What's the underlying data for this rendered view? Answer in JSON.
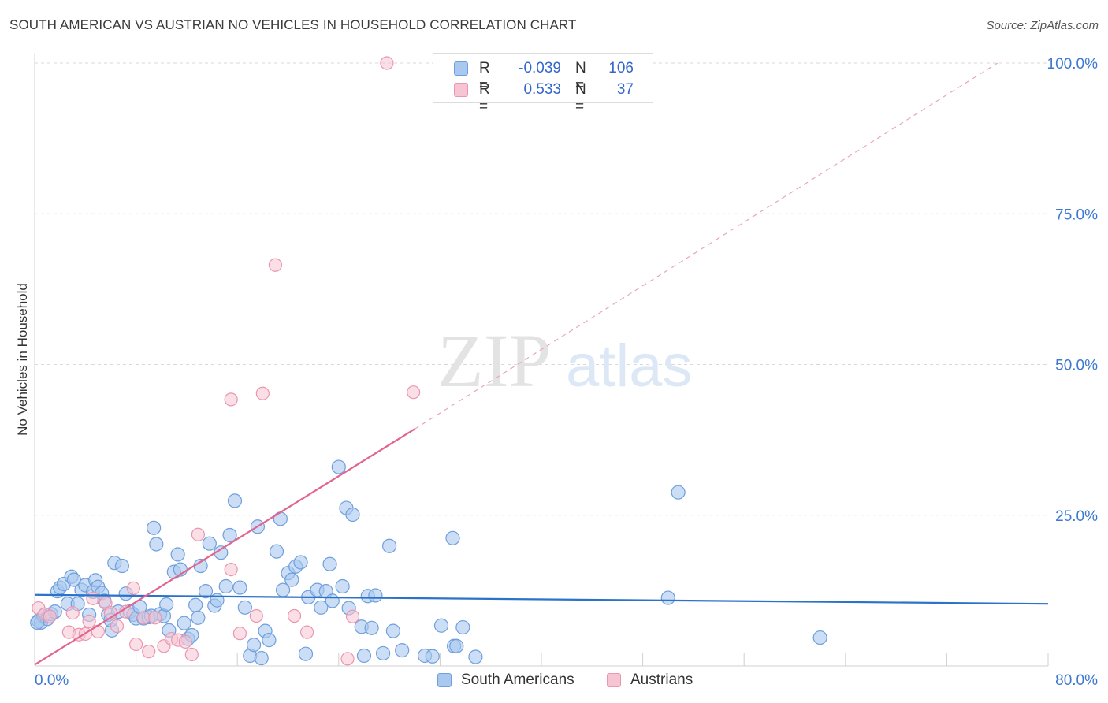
{
  "header": {
    "title": "SOUTH AMERICAN VS AUSTRIAN NO VEHICLES IN HOUSEHOLD CORRELATION CHART",
    "source": "Source: ZipAtlas.com"
  },
  "watermark": {
    "zip": "ZIP",
    "atlas": "atlas"
  },
  "legend": {
    "rows": [
      {
        "r_label": "R =",
        "r_value": "-0.039",
        "n_label": "N =",
        "n_value": "106"
      },
      {
        "r_label": "R =",
        "r_value": "0.533",
        "n_label": "N =",
        "n_value": "37"
      }
    ]
  },
  "colors": {
    "south_fill": "#a9c8ef",
    "south_stroke": "#6f9fdc",
    "south_line": "#2b72c9",
    "austrian_fill": "#f7c4d3",
    "austrian_stroke": "#ea96b0",
    "austrian_line": "#e2648f",
    "axis_label": "#3d78d0",
    "grid": "#d9d9d9"
  },
  "chart_data": {
    "type": "scatter",
    "title": "SOUTH AMERICAN VS AUSTRIAN NO VEHICLES IN HOUSEHOLD CORRELATION CHART",
    "xlabel": "",
    "ylabel": "No Vehicles in Household",
    "xlim": [
      0,
      80
    ],
    "ylim": [
      0,
      100
    ],
    "x_tick_labels": [
      {
        "value": 0,
        "label": "0.0%"
      },
      {
        "value": 80,
        "label": "80.0%"
      }
    ],
    "y_tick_labels": [
      {
        "value": 25,
        "label": "25.0%"
      },
      {
        "value": 50,
        "label": "50.0%"
      },
      {
        "value": 75,
        "label": "75.0%"
      },
      {
        "value": 100,
        "label": "100.0%"
      }
    ],
    "series": [
      {
        "name": "South Americans",
        "r": -0.039,
        "n": 106,
        "trend": {
          "x0": 0,
          "y0": 11.8,
          "x1": 80,
          "y1": 10.3
        },
        "points": [
          [
            0.3,
            7.5
          ],
          [
            0.5,
            7.2
          ],
          [
            0.7,
            8.3
          ],
          [
            1.0,
            7.8
          ],
          [
            1.3,
            8.6
          ],
          [
            1.6,
            9.0
          ],
          [
            1.8,
            12.4
          ],
          [
            2.0,
            13.0
          ],
          [
            2.3,
            13.6
          ],
          [
            2.6,
            10.3
          ],
          [
            2.9,
            14.8
          ],
          [
            3.1,
            14.3
          ],
          [
            3.4,
            10.3
          ],
          [
            3.7,
            12.6
          ],
          [
            4.0,
            13.4
          ],
          [
            4.3,
            8.5
          ],
          [
            4.6,
            12.3
          ],
          [
            4.8,
            14.2
          ],
          [
            5.0,
            13.1
          ],
          [
            5.3,
            12.1
          ],
          [
            5.5,
            10.8
          ],
          [
            5.8,
            8.5
          ],
          [
            6.1,
            5.9
          ],
          [
            6.3,
            17.1
          ],
          [
            6.6,
            9.0
          ],
          [
            6.9,
            16.6
          ],
          [
            7.2,
            12.0
          ],
          [
            7.5,
            9.0
          ],
          [
            7.8,
            8.5
          ],
          [
            8.0,
            7.9
          ],
          [
            8.3,
            9.8
          ],
          [
            8.6,
            7.9
          ],
          [
            9.0,
            8.1
          ],
          [
            9.4,
            22.9
          ],
          [
            9.6,
            20.2
          ],
          [
            9.9,
            8.6
          ],
          [
            10.2,
            8.3
          ],
          [
            10.4,
            10.2
          ],
          [
            10.6,
            5.9
          ],
          [
            11.0,
            15.6
          ],
          [
            11.3,
            18.5
          ],
          [
            11.5,
            16.0
          ],
          [
            11.8,
            7.1
          ],
          [
            12.1,
            4.5
          ],
          [
            12.4,
            5.1
          ],
          [
            12.7,
            10.1
          ],
          [
            12.9,
            8.0
          ],
          [
            13.1,
            16.6
          ],
          [
            13.5,
            12.4
          ],
          [
            13.8,
            20.3
          ],
          [
            14.2,
            10.0
          ],
          [
            14.4,
            10.9
          ],
          [
            14.7,
            18.8
          ],
          [
            15.1,
            13.2
          ],
          [
            15.4,
            21.7
          ],
          [
            15.8,
            27.4
          ],
          [
            16.2,
            13.0
          ],
          [
            16.6,
            9.7
          ],
          [
            17.0,
            1.7
          ],
          [
            17.3,
            3.5
          ],
          [
            17.6,
            23.1
          ],
          [
            17.9,
            1.3
          ],
          [
            18.2,
            5.8
          ],
          [
            18.5,
            4.3
          ],
          [
            19.1,
            19.0
          ],
          [
            19.4,
            24.4
          ],
          [
            19.6,
            12.6
          ],
          [
            20.0,
            15.4
          ],
          [
            20.3,
            14.3
          ],
          [
            20.6,
            16.5
          ],
          [
            21.0,
            17.2
          ],
          [
            21.4,
            2.0
          ],
          [
            21.6,
            11.4
          ],
          [
            22.3,
            12.6
          ],
          [
            22.6,
            9.7
          ],
          [
            23.0,
            12.4
          ],
          [
            23.3,
            16.9
          ],
          [
            23.5,
            10.8
          ],
          [
            24.0,
            33.0
          ],
          [
            24.3,
            13.2
          ],
          [
            24.6,
            26.2
          ],
          [
            24.8,
            9.6
          ],
          [
            25.1,
            25.1
          ],
          [
            25.8,
            6.5
          ],
          [
            26.0,
            1.7
          ],
          [
            26.3,
            11.6
          ],
          [
            26.6,
            6.3
          ],
          [
            26.9,
            11.7
          ],
          [
            27.5,
            2.1
          ],
          [
            28.0,
            19.9
          ],
          [
            28.3,
            5.8
          ],
          [
            29.0,
            2.6
          ],
          [
            30.8,
            1.7
          ],
          [
            31.4,
            1.6
          ],
          [
            32.1,
            6.7
          ],
          [
            33.0,
            21.2
          ],
          [
            33.1,
            3.3
          ],
          [
            33.3,
            3.3
          ],
          [
            33.8,
            6.4
          ],
          [
            34.8,
            1.5
          ],
          [
            50.0,
            11.3
          ],
          [
            50.8,
            28.8
          ],
          [
            62.0,
            4.7
          ],
          [
            0.2,
            7.2
          ],
          [
            6.0,
            7.6
          ],
          [
            9.2,
            8.3
          ]
        ]
      },
      {
        "name": "Austrians",
        "r": 0.533,
        "n": 37,
        "trend": {
          "x0": 0,
          "y0": 0.2,
          "x1": 30,
          "y1": 39.3
        },
        "trend_extension": {
          "x0": 30,
          "y0": 39.3,
          "x1": 76,
          "y1": 100
        },
        "points": [
          [
            0.3,
            9.6
          ],
          [
            0.8,
            8.6
          ],
          [
            1.2,
            8.2
          ],
          [
            2.7,
            5.6
          ],
          [
            3.0,
            8.8
          ],
          [
            3.5,
            5.2
          ],
          [
            4.0,
            5.3
          ],
          [
            4.3,
            7.4
          ],
          [
            4.6,
            11.2
          ],
          [
            5.0,
            5.7
          ],
          [
            5.6,
            10.4
          ],
          [
            6.0,
            8.8
          ],
          [
            6.5,
            6.6
          ],
          [
            7.2,
            9.0
          ],
          [
            7.8,
            12.9
          ],
          [
            8.0,
            3.6
          ],
          [
            8.6,
            8.0
          ],
          [
            9.0,
            2.4
          ],
          [
            9.5,
            8.0
          ],
          [
            10.2,
            3.3
          ],
          [
            10.8,
            4.5
          ],
          [
            11.3,
            4.3
          ],
          [
            11.9,
            4.0
          ],
          [
            12.4,
            1.9
          ],
          [
            12.9,
            21.8
          ],
          [
            15.5,
            16.0
          ],
          [
            15.5,
            44.2
          ],
          [
            16.2,
            5.4
          ],
          [
            18.0,
            45.2
          ],
          [
            19.0,
            66.5
          ],
          [
            20.5,
            8.3
          ],
          [
            21.5,
            5.6
          ],
          [
            24.7,
            1.2
          ],
          [
            25.1,
            8.2
          ],
          [
            27.8,
            100
          ],
          [
            29.9,
            45.4
          ],
          [
            17.5,
            8.3
          ]
        ]
      }
    ]
  },
  "legend_bottom": {
    "items": [
      {
        "label": "South Americans"
      },
      {
        "label": "Austrians"
      }
    ]
  }
}
